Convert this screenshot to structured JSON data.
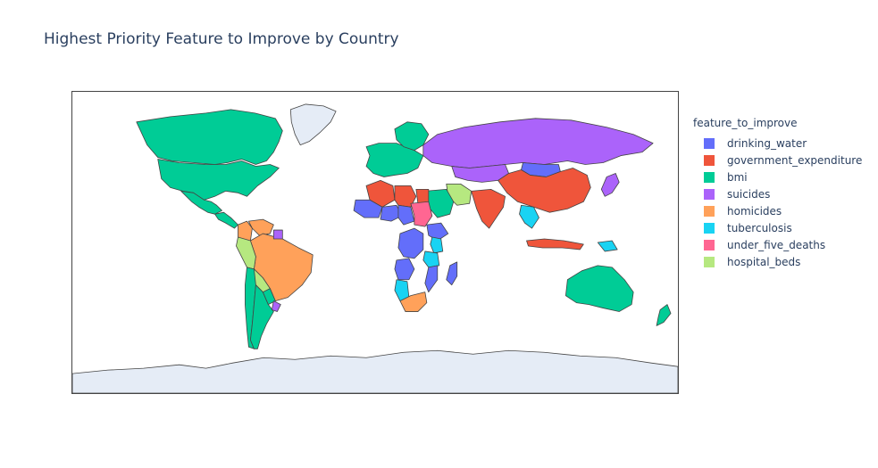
{
  "title": "Highest Priority Feature to Improve by Country",
  "legend": {
    "title": "feature_to_improve",
    "items": [
      {
        "label": "drinking_water",
        "color": "#636efa"
      },
      {
        "label": "government_expenditure",
        "color": "#ef553b"
      },
      {
        "label": "bmi",
        "color": "#00cc96"
      },
      {
        "label": "suicides",
        "color": "#ab63fa"
      },
      {
        "label": "homicides",
        "color": "#ffa15a"
      },
      {
        "label": "tuberculosis",
        "color": "#19d3f3"
      },
      {
        "label": "under_five_deaths",
        "color": "#ff6692"
      },
      {
        "label": "hospital_beds",
        "color": "#b6e880"
      }
    ]
  },
  "colors": {
    "no_data": "#e5ecf6",
    "border": "#444444",
    "text": "#2a3f5f"
  },
  "chart_data": {
    "type": "choropleth",
    "color_field": "feature_to_improve",
    "projection": "equirectangular",
    "regions": [
      {
        "name": "Greenland",
        "category": "no_data"
      },
      {
        "name": "Antarctica",
        "category": "no_data"
      },
      {
        "name": "Canada",
        "category": "bmi"
      },
      {
        "name": "United States",
        "category": "bmi"
      },
      {
        "name": "Mexico",
        "category": "bmi"
      },
      {
        "name": "Central America",
        "category": "bmi"
      },
      {
        "name": "Colombia",
        "category": "homicides"
      },
      {
        "name": "Venezuela",
        "category": "homicides"
      },
      {
        "name": "Brazil",
        "category": "homicides"
      },
      {
        "name": "Peru",
        "category": "hospital_beds"
      },
      {
        "name": "Bolivia",
        "category": "hospital_beds"
      },
      {
        "name": "Chile",
        "category": "bmi"
      },
      {
        "name": "Argentina",
        "category": "bmi"
      },
      {
        "name": "Paraguay",
        "category": "bmi"
      },
      {
        "name": "Uruguay",
        "category": "suicides"
      },
      {
        "name": "Suriname",
        "category": "suicides"
      },
      {
        "name": "Western Europe",
        "category": "bmi"
      },
      {
        "name": "Scandinavia",
        "category": "bmi"
      },
      {
        "name": "Russia",
        "category": "suicides"
      },
      {
        "name": "Kazakhstan",
        "category": "suicides"
      },
      {
        "name": "Mongolia",
        "category": "drinking_water"
      },
      {
        "name": "China",
        "category": "government_expenditure"
      },
      {
        "name": "India",
        "category": "government_expenditure"
      },
      {
        "name": "Iran",
        "category": "hospital_beds"
      },
      {
        "name": "Saudi Arabia",
        "category": "bmi"
      },
      {
        "name": "Algeria",
        "category": "government_expenditure"
      },
      {
        "name": "Libya",
        "category": "government_expenditure"
      },
      {
        "name": "Egypt",
        "category": "government_expenditure"
      },
      {
        "name": "Mali",
        "category": "drinking_water"
      },
      {
        "name": "Niger",
        "category": "drinking_water"
      },
      {
        "name": "Chad",
        "category": "drinking_water"
      },
      {
        "name": "Sudan",
        "category": "under_five_deaths"
      },
      {
        "name": "Ethiopia",
        "category": "drinking_water"
      },
      {
        "name": "Kenya",
        "category": "tuberculosis"
      },
      {
        "name": "DR Congo",
        "category": "drinking_water"
      },
      {
        "name": "Angola",
        "category": "drinking_water"
      },
      {
        "name": "Tanzania",
        "category": "tuberculosis"
      },
      {
        "name": "Mozambique",
        "category": "drinking_water"
      },
      {
        "name": "Namibia",
        "category": "tuberculosis"
      },
      {
        "name": "South Africa",
        "category": "homicides"
      },
      {
        "name": "Madagascar",
        "category": "drinking_water"
      },
      {
        "name": "Southeast Asia",
        "category": "tuberculosis"
      },
      {
        "name": "Indonesia",
        "category": "government_expenditure"
      },
      {
        "name": "Papua New Guinea",
        "category": "tuberculosis"
      },
      {
        "name": "Japan",
        "category": "suicides"
      },
      {
        "name": "Australia",
        "category": "bmi"
      },
      {
        "name": "New Zealand",
        "category": "bmi"
      }
    ]
  }
}
